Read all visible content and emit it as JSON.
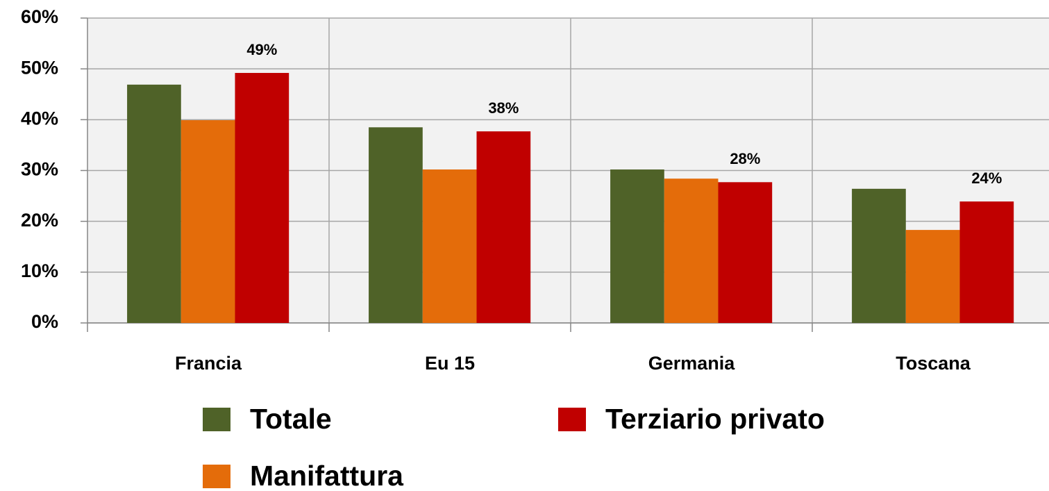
{
  "chart_data": {
    "type": "bar",
    "categories": [
      "Francia",
      "Eu 15",
      "Germania",
      "Toscana"
    ],
    "series": [
      {
        "name": "Totale",
        "color": "#4f6228",
        "values": [
          46.9,
          38.5,
          30.2,
          26.4
        ]
      },
      {
        "name": "Manifattura",
        "color": "#e46c0a",
        "values": [
          39.9,
          30.2,
          28.4,
          18.3
        ]
      },
      {
        "name": "Terziario privato",
        "color": "#c00000",
        "values": [
          49.2,
          37.7,
          27.7,
          23.9
        ],
        "value_labels": [
          "49%",
          "38%",
          "28%",
          "24%"
        ]
      }
    ],
    "ylim": [
      0,
      60
    ],
    "yticks": [
      {
        "value": 0,
        "label": "0%"
      },
      {
        "value": 10,
        "label": "10%"
      },
      {
        "value": 20,
        "label": "20%"
      },
      {
        "value": 30,
        "label": "30%"
      },
      {
        "value": 40,
        "label": "40%"
      },
      {
        "value": 50,
        "label": "50%"
      },
      {
        "value": 60,
        "label": "60%"
      }
    ],
    "grid": true,
    "legend": "bottom"
  }
}
